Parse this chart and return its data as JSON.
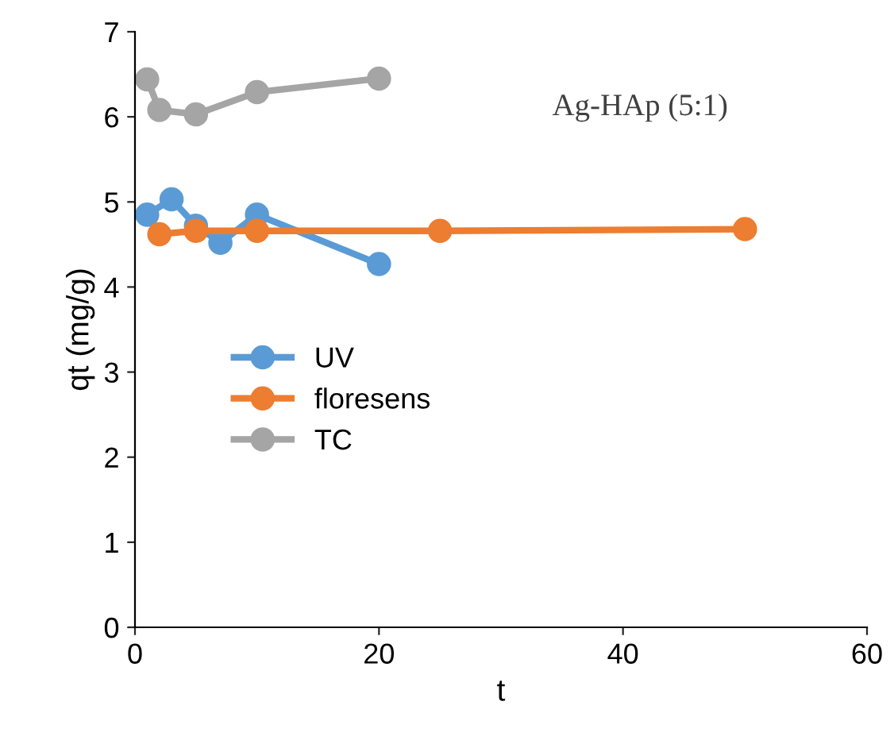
{
  "chart_data": {
    "type": "line",
    "xlabel": "t",
    "ylabel": "qt (mg/g)",
    "annotations": [
      "Ag-HAp (5:1)"
    ],
    "xlim": [
      0,
      60
    ],
    "xticks": [
      0,
      20,
      40,
      60
    ],
    "ylim": [
      0,
      7
    ],
    "yticks": [
      0,
      1,
      2,
      3,
      4,
      5,
      6,
      7
    ],
    "marker": "circle",
    "line_style": "solid",
    "grid": false,
    "legend": "left",
    "series": [
      {
        "name": "UV",
        "color": "#5b9bd5",
        "x": [
          1,
          3,
          5,
          7,
          10,
          20
        ],
        "values": [
          4.85,
          5.03,
          4.72,
          4.52,
          4.85,
          4.27
        ]
      },
      {
        "name": "floresens",
        "color": "#ed7d31",
        "x": [
          2,
          5,
          10,
          25,
          50
        ],
        "values": [
          4.62,
          4.66,
          4.66,
          4.66,
          4.68
        ]
      },
      {
        "name": "TC",
        "color": "#a5a5a5",
        "x": [
          1,
          2,
          5,
          10,
          20
        ],
        "values": [
          6.44,
          6.08,
          6.03,
          6.29,
          6.45
        ]
      }
    ]
  }
}
